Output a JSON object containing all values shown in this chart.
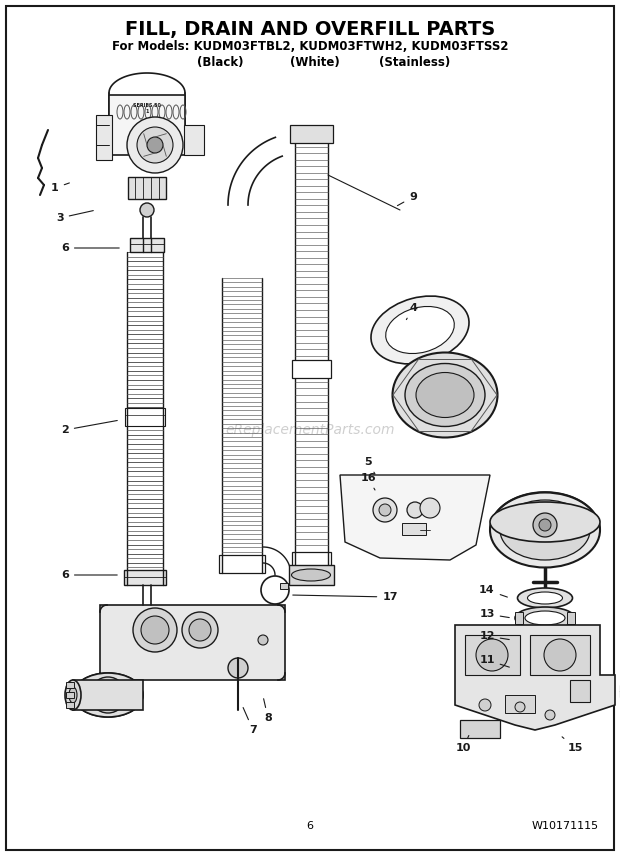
{
  "title_line1": "FILL, DRAIN AND OVERFILL PARTS",
  "title_line2": "For Models: KUDM03FTBL2, KUDM03FTWH2, KUDM03FTSS2",
  "title_line3_black": "(Black)",
  "title_line3_white": "(White)",
  "title_line3_stainless": "(Stainless)",
  "page_number": "6",
  "part_number": "W10171115",
  "watermark": "eReplacementParts.com",
  "background_color": "#ffffff",
  "border_color": "#000000",
  "text_color": "#000000",
  "title_fontsize": 14,
  "subtitle_fontsize": 8.5,
  "label_fontsize": 8,
  "footer_fontsize": 8,
  "figure_width": 6.2,
  "figure_height": 8.56,
  "dpi": 100
}
